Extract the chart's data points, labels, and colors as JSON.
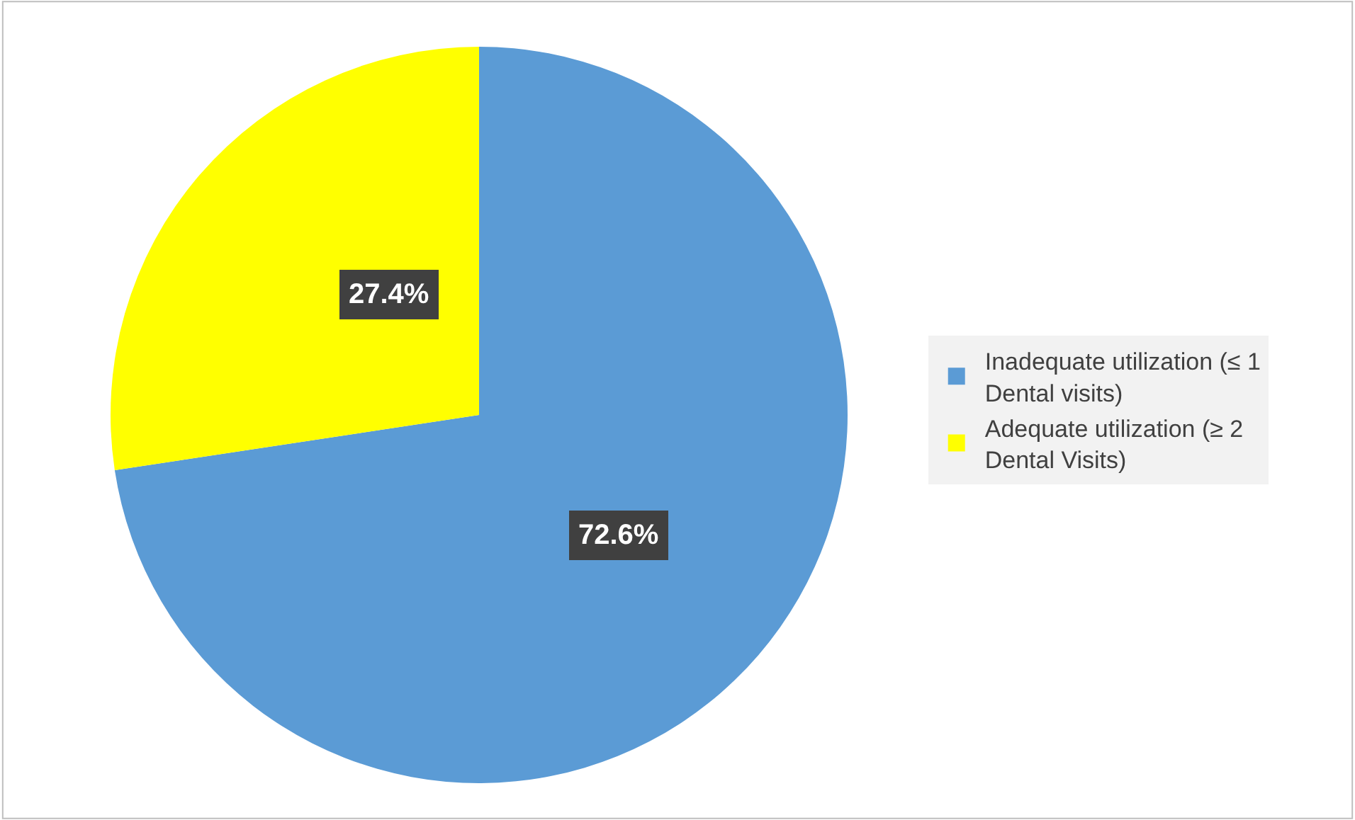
{
  "chart_data": {
    "type": "pie",
    "categories": [
      "Inadequate utilization (≤ 1 Dental visits)",
      "Adequate utilization (≥ 2 Dental Visits)"
    ],
    "values": [
      72.6,
      27.4
    ],
    "colors": [
      "#5b9bd5",
      "#ffff00"
    ],
    "value_labels": [
      "72.6%",
      "27.4%"
    ],
    "legend": "right"
  }
}
